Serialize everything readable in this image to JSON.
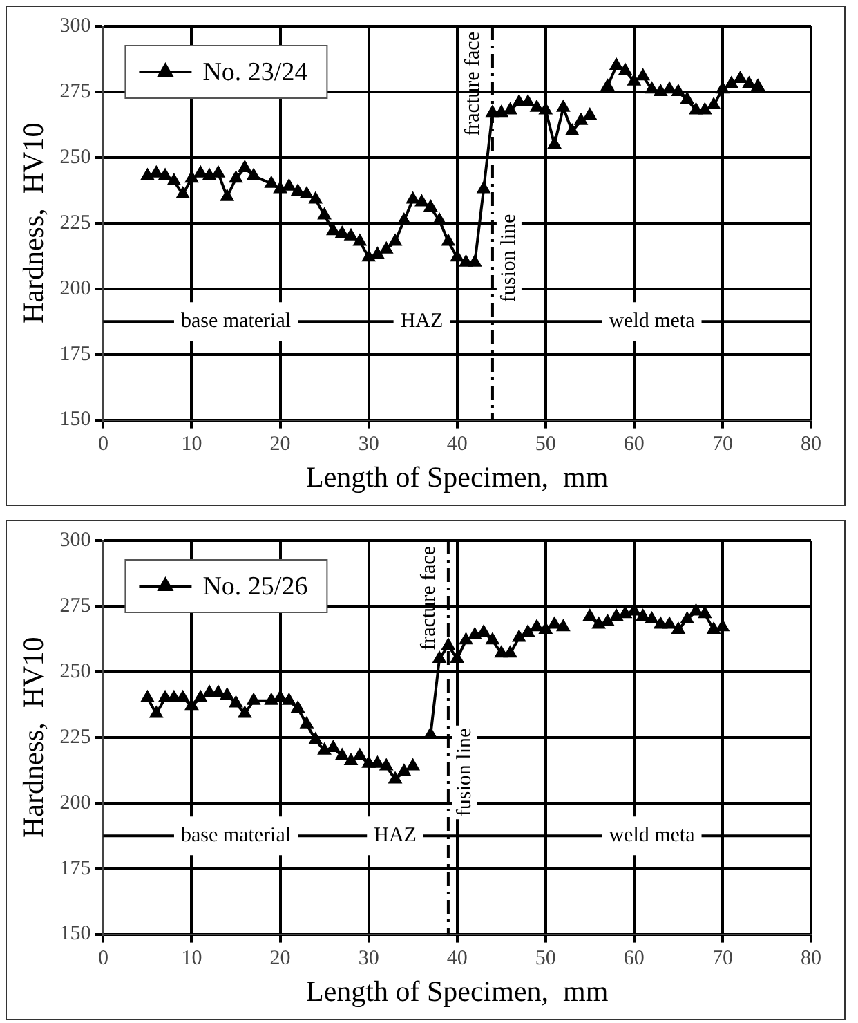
{
  "chart_data": [
    {
      "type": "line",
      "xlabel": "Length of Specimen,  mm",
      "ylabel": "Hardness,  HV10",
      "xlim": [
        0,
        80
      ],
      "ylim": [
        150,
        300
      ],
      "xticks": [
        0,
        10,
        20,
        30,
        40,
        50,
        60,
        70,
        80
      ],
      "yticks": [
        150,
        175,
        200,
        225,
        250,
        275,
        300
      ],
      "grid": true,
      "legend": "top left",
      "marker": "triangle",
      "line_style": "solid",
      "series": [
        {
          "name": "No. 23/24",
          "color": "#000000",
          "x": [
            5,
            6,
            7,
            8,
            9,
            10,
            11,
            12,
            13,
            14,
            15,
            16,
            17,
            19,
            20,
            21,
            22,
            23,
            24,
            25,
            26,
            27,
            28,
            29,
            30,
            31,
            32,
            33,
            34,
            35,
            36,
            37,
            38,
            39,
            40,
            41,
            42,
            43,
            44,
            45,
            46,
            47,
            48,
            49,
            50,
            51,
            52,
            53,
            54,
            55,
            56,
            57,
            58,
            59,
            60,
            61,
            62,
            63,
            64,
            65,
            66,
            67,
            68,
            69,
            70,
            71,
            72,
            73,
            74
          ],
          "values": [
            243,
            244,
            243,
            241,
            236,
            242,
            244,
            243,
            244,
            235,
            242,
            246,
            243,
            240,
            238,
            239,
            237,
            236,
            234,
            228,
            222,
            221,
            220,
            218,
            212,
            213,
            215,
            218,
            226,
            234,
            233,
            231,
            226,
            218,
            212,
            210,
            210,
            238,
            267,
            267,
            268,
            271,
            271,
            269,
            268,
            255,
            269,
            260,
            264,
            266,
            null,
            277,
            285,
            283,
            279,
            281,
            276,
            275,
            276,
            275,
            272,
            268,
            268,
            270,
            276,
            278,
            280,
            278,
            277
          ]
        }
      ],
      "ref_lines": [
        {
          "axis": "x",
          "value": 44,
          "label": "fusion line",
          "line_style": "dashed"
        },
        {
          "axis": "y",
          "value": 187.5,
          "label": null
        }
      ],
      "annotations": [
        "fracture face",
        {
          "text": "base material",
          "x": 15,
          "y": 187.5
        },
        {
          "text": "HAZ",
          "x": 36,
          "y": 187.5
        },
        {
          "text": "weld meta",
          "x": 62,
          "y": 187.5
        }
      ]
    },
    {
      "type": "line",
      "xlabel": "Length of Specimen,  mm",
      "ylabel": "Hardness,  HV10",
      "xlim": [
        0,
        80
      ],
      "ylim": [
        150,
        300
      ],
      "xticks": [
        0,
        10,
        20,
        30,
        40,
        50,
        60,
        70,
        80
      ],
      "yticks": [
        150,
        175,
        200,
        225,
        250,
        275,
        300
      ],
      "grid": true,
      "legend": "top left",
      "marker": "triangle",
      "line_style": "solid",
      "series": [
        {
          "name": "No. 25/26",
          "color": "#000000",
          "x": [
            5,
            6,
            7,
            8,
            9,
            10,
            11,
            12,
            13,
            14,
            15,
            16,
            17,
            19,
            20,
            21,
            22,
            23,
            24,
            25,
            26,
            27,
            28,
            29,
            30,
            31,
            32,
            33,
            34,
            35,
            36,
            37,
            38,
            39,
            40,
            41,
            42,
            43,
            44,
            45,
            46,
            47,
            48,
            49,
            50,
            51,
            52,
            53,
            54,
            55,
            56,
            57,
            58,
            59,
            60,
            61,
            62,
            63,
            64,
            65,
            66,
            67,
            68,
            69,
            70
          ],
          "values": [
            240,
            234,
            240,
            240,
            240,
            237,
            240,
            242,
            242,
            241,
            238,
            234,
            239,
            239,
            240,
            239,
            236,
            230,
            224,
            220,
            221,
            218,
            216,
            218,
            215,
            215,
            214,
            209,
            212,
            214,
            null,
            226,
            255,
            260,
            255,
            262,
            264,
            265,
            262,
            257,
            257,
            263,
            265,
            267,
            266,
            268,
            267,
            null,
            null,
            271,
            268,
            269,
            271,
            272,
            273,
            271,
            270,
            268,
            268,
            266,
            270,
            273,
            272,
            266,
            267
          ]
        }
      ],
      "ref_lines": [
        {
          "axis": "x",
          "value": 39,
          "label": "fusion line",
          "line_style": "dashed"
        },
        {
          "axis": "y",
          "value": 187.5,
          "label": null
        }
      ],
      "annotations": [
        "fracture face",
        {
          "text": "base material",
          "x": 15,
          "y": 187.5
        },
        {
          "text": "HAZ",
          "x": 33,
          "y": 187.5
        },
        {
          "text": "weld meta",
          "x": 62,
          "y": 187.5
        }
      ]
    }
  ]
}
